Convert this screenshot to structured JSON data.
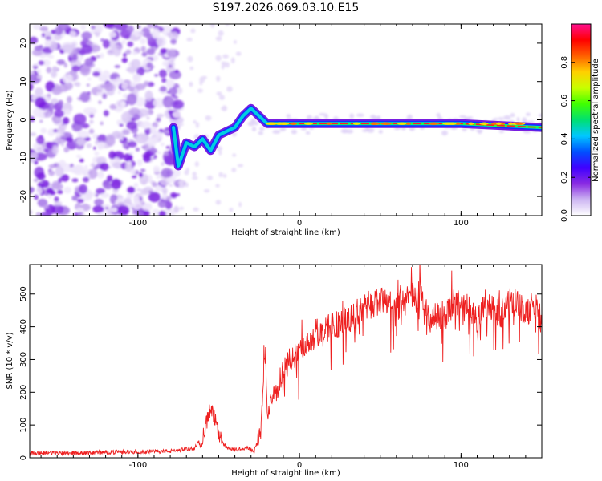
{
  "title": "S197.2026.069.03.10.E15",
  "chart_data": [
    {
      "type": "heatmap",
      "xlabel": "Height of straight line (km)",
      "ylabel": "Frequency (Hz)",
      "xlim": [
        -167,
        150
      ],
      "ylim": [
        -25,
        25
      ],
      "xticks": [
        -100,
        0,
        100
      ],
      "yticks": [
        -20,
        -10,
        0,
        10,
        20
      ],
      "colorbar": {
        "label": "Normalized spectral amplitude",
        "range": [
          0,
          1
        ],
        "ticks": [
          "0.0",
          "0.2",
          "0.4",
          "0.6",
          "0.8"
        ],
        "colors": [
          "#ffffff",
          "#cdb6f2",
          "#8a2be2",
          "#4000ff",
          "#0050ff",
          "#00c8ff",
          "#00e070",
          "#40ff00",
          "#c8ff00",
          "#ffd000",
          "#ff6000",
          "#ff0000",
          "#ff1090"
        ]
      },
      "ridge": {
        "description_points_x": [
          -78,
          -75,
          -70,
          -65,
          -60,
          -55,
          -50,
          -45,
          -40,
          -35,
          -30,
          -20,
          0,
          50,
          100,
          150
        ],
        "description_points_y": [
          -2,
          -12,
          -6,
          -7,
          -5,
          -8,
          -4,
          -3,
          -2,
          1,
          3,
          -1,
          -1,
          -1,
          -1,
          -2
        ]
      }
    },
    {
      "type": "line",
      "xlabel": "Height of straight line (km)",
      "ylabel": "SNR (10 * v/v)",
      "xlim": [
        -167,
        150
      ],
      "ylim": [
        0,
        590
      ],
      "xticks": [
        -100,
        0,
        100
      ],
      "yticks": [
        0,
        100,
        200,
        300,
        400,
        500
      ],
      "color": "#ee2020",
      "series": [
        {
          "name": "SNR",
          "x": [
            -167,
            -140,
            -110,
            -80,
            -65,
            -60,
            -55,
            -52,
            -50,
            -47,
            -44,
            -42,
            -40,
            -38,
            -36,
            -34,
            -32,
            -28,
            -24,
            -21,
            -20,
            -18,
            -15,
            -12,
            -10,
            -5,
            0,
            5,
            10,
            15,
            20,
            25,
            30,
            40,
            50,
            60,
            70,
            75,
            80,
            85,
            90,
            95,
            100,
            110,
            115,
            120,
            125,
            130,
            135,
            140,
            145,
            150
          ],
          "y": [
            15,
            15,
            18,
            20,
            30,
            60,
            150,
            110,
            60,
            40,
            30,
            25,
            25,
            25,
            30,
            25,
            30,
            20,
            80,
            330,
            120,
            180,
            210,
            240,
            280,
            300,
            320,
            350,
            380,
            380,
            410,
            410,
            420,
            460,
            480,
            460,
            490,
            500,
            420,
            430,
            440,
            470,
            480,
            420,
            470,
            460,
            440,
            480,
            470,
            440,
            470,
            420
          ]
        }
      ]
    }
  ]
}
